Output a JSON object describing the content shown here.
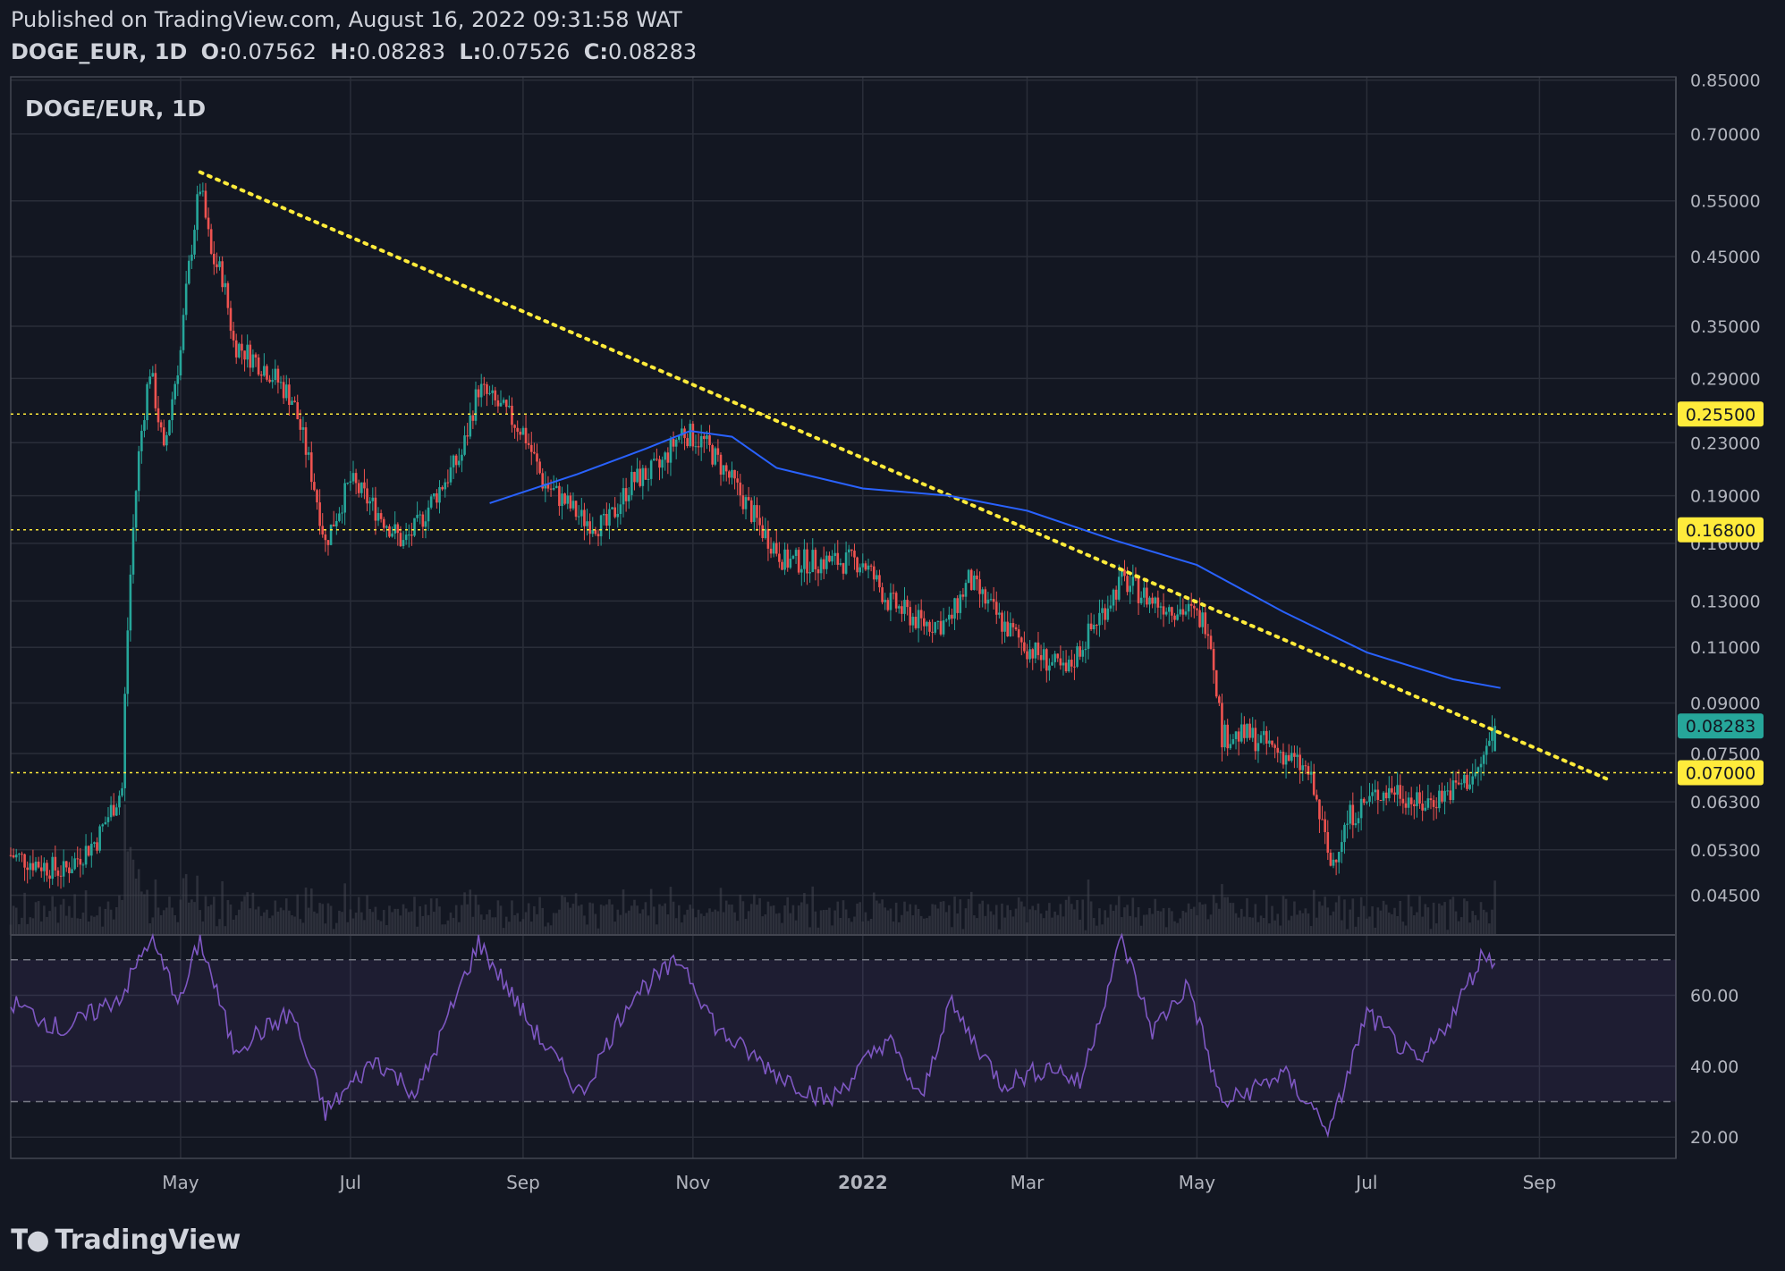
{
  "header": {
    "published": "Published on TradingView.com, August 16, 2022 09:31:58 WAT",
    "symbol": "DOGE_EUR, 1D",
    "o_label": "O:",
    "o_value": "0.07562",
    "h_label": "H:",
    "h_value": "0.08283",
    "l_label": "L:",
    "l_value": "0.07526",
    "c_label": "C:",
    "c_value": "0.08283"
  },
  "footer": {
    "brand": "TradingView"
  },
  "colors": {
    "background": "#131722",
    "grid": "#2a2e39",
    "up": "#26a69a",
    "down": "#ef5350",
    "ma": "#2962ff",
    "trend": "#ffeb3b",
    "rsi": "#7e57c2",
    "rsi_band": "#7e57c2"
  },
  "chart_data": [
    {
      "type": "candlestick",
      "title": "DOGE/EUR, 1D",
      "scale": "log",
      "x_ticks": [
        "May",
        "Jul",
        "Sep",
        "Nov",
        "2022",
        "Mar",
        "May",
        "Jul",
        "Sep"
      ],
      "y_ticks": [
        "0.85000",
        "0.70000",
        "0.55000",
        "0.45000",
        "0.35000",
        "0.29000",
        "0.23000",
        "0.19000",
        "0.16000",
        "0.13000",
        "0.11000",
        "0.09000",
        "0.07500",
        "0.06300",
        "0.05300",
        "0.04500"
      ],
      "ylim": [
        0.039,
        0.86
      ],
      "horizontal_levels": [
        {
          "value": 0.255,
          "label": "0.25500"
        },
        {
          "value": 0.168,
          "label": "0.16800"
        },
        {
          "value": 0.07,
          "label": "0.07000"
        }
      ],
      "last_price": {
        "value": 0.08283,
        "label": "0.08283"
      },
      "trendline": {
        "from": {
          "date": "2021-05-08",
          "value": 0.61
        },
        "to": {
          "date": "2022-09-25",
          "value": 0.0685
        }
      },
      "moving_average_path": [
        {
          "date": "2021-08-20",
          "value": 0.185
        },
        {
          "date": "2021-09-20",
          "value": 0.205
        },
        {
          "date": "2021-10-15",
          "value": 0.225
        },
        {
          "date": "2021-10-31",
          "value": 0.24
        },
        {
          "date": "2021-11-15",
          "value": 0.235
        },
        {
          "date": "2021-12-01",
          "value": 0.21
        },
        {
          "date": "2022-01-01",
          "value": 0.195
        },
        {
          "date": "2022-02-01",
          "value": 0.19
        },
        {
          "date": "2022-03-01",
          "value": 0.18
        },
        {
          "date": "2022-04-01",
          "value": 0.162
        },
        {
          "date": "2022-05-01",
          "value": 0.148
        },
        {
          "date": "2022-06-01",
          "value": 0.125
        },
        {
          "date": "2022-07-01",
          "value": 0.108
        },
        {
          "date": "2022-08-01",
          "value": 0.098
        },
        {
          "date": "2022-08-18",
          "value": 0.095
        }
      ],
      "price_path": [
        {
          "date": "2021-03-01",
          "value": 0.052
        },
        {
          "date": "2021-03-20",
          "value": 0.049
        },
        {
          "date": "2021-04-01",
          "value": 0.055
        },
        {
          "date": "2021-04-10",
          "value": 0.066
        },
        {
          "date": "2021-04-16",
          "value": 0.22
        },
        {
          "date": "2021-04-20",
          "value": 0.3
        },
        {
          "date": "2021-04-25",
          "value": 0.22
        },
        {
          "date": "2021-05-01",
          "value": 0.32
        },
        {
          "date": "2021-05-08",
          "value": 0.58
        },
        {
          "date": "2021-05-12",
          "value": 0.45
        },
        {
          "date": "2021-05-16",
          "value": 0.42
        },
        {
          "date": "2021-05-20",
          "value": 0.33
        },
        {
          "date": "2021-06-01",
          "value": 0.3
        },
        {
          "date": "2021-06-10",
          "value": 0.27
        },
        {
          "date": "2021-06-22",
          "value": 0.16
        },
        {
          "date": "2021-07-01",
          "value": 0.2
        },
        {
          "date": "2021-07-20",
          "value": 0.16
        },
        {
          "date": "2021-07-25",
          "value": 0.17
        },
        {
          "date": "2021-08-10",
          "value": 0.22
        },
        {
          "date": "2021-08-16",
          "value": 0.28
        },
        {
          "date": "2021-09-01",
          "value": 0.24
        },
        {
          "date": "2021-09-08",
          "value": 0.2
        },
        {
          "date": "2021-09-22",
          "value": 0.175
        },
        {
          "date": "2021-10-01",
          "value": 0.17
        },
        {
          "date": "2021-10-10",
          "value": 0.2
        },
        {
          "date": "2021-10-20",
          "value": 0.21
        },
        {
          "date": "2021-10-28",
          "value": 0.24
        },
        {
          "date": "2021-11-05",
          "value": 0.23
        },
        {
          "date": "2021-11-15",
          "value": 0.2
        },
        {
          "date": "2021-11-25",
          "value": 0.17
        },
        {
          "date": "2021-12-04",
          "value": 0.15
        },
        {
          "date": "2021-12-15",
          "value": 0.15
        },
        {
          "date": "2022-01-01",
          "value": 0.15
        },
        {
          "date": "2022-01-10",
          "value": 0.13
        },
        {
          "date": "2022-01-22",
          "value": 0.12
        },
        {
          "date": "2022-02-01",
          "value": 0.12
        },
        {
          "date": "2022-02-08",
          "value": 0.14
        },
        {
          "date": "2022-02-20",
          "value": 0.12
        },
        {
          "date": "2022-03-01",
          "value": 0.11
        },
        {
          "date": "2022-03-15",
          "value": 0.1
        },
        {
          "date": "2022-03-28",
          "value": 0.125
        },
        {
          "date": "2022-04-04",
          "value": 0.14
        },
        {
          "date": "2022-04-15",
          "value": 0.13
        },
        {
          "date": "2022-04-28",
          "value": 0.125
        },
        {
          "date": "2022-05-05",
          "value": 0.12
        },
        {
          "date": "2022-05-10",
          "value": 0.08
        },
        {
          "date": "2022-05-20",
          "value": 0.08
        },
        {
          "date": "2022-06-01",
          "value": 0.075
        },
        {
          "date": "2022-06-10",
          "value": 0.07
        },
        {
          "date": "2022-06-18",
          "value": 0.05
        },
        {
          "date": "2022-06-25",
          "value": 0.06
        },
        {
          "date": "2022-07-05",
          "value": 0.065
        },
        {
          "date": "2022-07-12",
          "value": 0.066
        },
        {
          "date": "2022-07-20",
          "value": 0.062
        },
        {
          "date": "2022-08-01",
          "value": 0.066
        },
        {
          "date": "2022-08-10",
          "value": 0.07
        },
        {
          "date": "2022-08-16",
          "value": 0.0828
        }
      ]
    },
    {
      "type": "line",
      "title": "",
      "y_ticks": [
        "60.00",
        "40.00",
        "20.00"
      ],
      "ylim": [
        14,
        77
      ],
      "band": [
        30,
        70
      ],
      "series": [
        {
          "values_path": [
            {
              "date": "2021-03-01",
              "value": 58
            },
            {
              "date": "2021-03-20",
              "value": 50
            },
            {
              "date": "2021-04-10",
              "value": 60
            },
            {
              "date": "2021-04-20",
              "value": 76
            },
            {
              "date": "2021-05-01",
              "value": 58
            },
            {
              "date": "2021-05-08",
              "value": 76
            },
            {
              "date": "2021-05-20",
              "value": 45
            },
            {
              "date": "2021-06-10",
              "value": 55
            },
            {
              "date": "2021-06-22",
              "value": 27
            },
            {
              "date": "2021-07-10",
              "value": 42
            },
            {
              "date": "2021-07-25",
              "value": 32
            },
            {
              "date": "2021-08-16",
              "value": 75
            },
            {
              "date": "2021-09-05",
              "value": 50
            },
            {
              "date": "2021-09-22",
              "value": 32
            },
            {
              "date": "2021-10-10",
              "value": 60
            },
            {
              "date": "2021-10-28",
              "value": 70
            },
            {
              "date": "2021-11-10",
              "value": 50
            },
            {
              "date": "2021-12-01",
              "value": 38
            },
            {
              "date": "2021-12-20",
              "value": 30
            },
            {
              "date": "2022-01-10",
              "value": 48
            },
            {
              "date": "2022-01-22",
              "value": 30
            },
            {
              "date": "2022-02-01",
              "value": 58
            },
            {
              "date": "2022-02-20",
              "value": 35
            },
            {
              "date": "2022-03-10",
              "value": 40
            },
            {
              "date": "2022-03-20",
              "value": 35
            },
            {
              "date": "2022-04-04",
              "value": 76
            },
            {
              "date": "2022-04-15",
              "value": 50
            },
            {
              "date": "2022-04-28",
              "value": 63
            },
            {
              "date": "2022-05-10",
              "value": 29
            },
            {
              "date": "2022-06-01",
              "value": 38
            },
            {
              "date": "2022-06-18",
              "value": 22
            },
            {
              "date": "2022-07-01",
              "value": 55
            },
            {
              "date": "2022-07-20",
              "value": 40
            },
            {
              "date": "2022-08-01",
              "value": 55
            },
            {
              "date": "2022-08-12",
              "value": 72
            },
            {
              "date": "2022-08-16",
              "value": 70
            }
          ]
        }
      ]
    }
  ]
}
